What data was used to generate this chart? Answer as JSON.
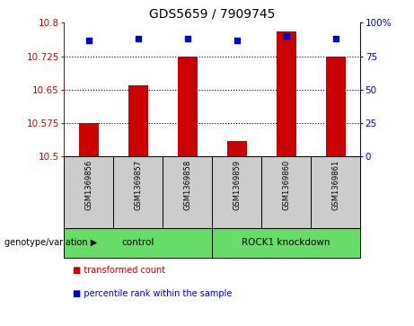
{
  "title": "GDS5659 / 7909745",
  "samples": [
    "GSM1369856",
    "GSM1369857",
    "GSM1369858",
    "GSM1369859",
    "GSM1369860",
    "GSM1369861"
  ],
  "red_values": [
    10.575,
    10.66,
    10.725,
    10.535,
    10.78,
    10.725
  ],
  "blue_values": [
    87,
    88,
    88,
    87,
    90,
    88
  ],
  "ylim_left": [
    10.5,
    10.8
  ],
  "ylim_right": [
    0,
    100
  ],
  "yticks_left": [
    10.5,
    10.575,
    10.65,
    10.725,
    10.8
  ],
  "yticks_right": [
    0,
    25,
    50,
    75,
    100
  ],
  "ytick_labels_left": [
    "10.5",
    "10.575",
    "10.65",
    "10.725",
    "10.8"
  ],
  "ytick_labels_right": [
    "0",
    "25",
    "50",
    "75",
    "100%"
  ],
  "hlines": [
    10.575,
    10.65,
    10.725
  ],
  "bar_color": "#cc0000",
  "dot_color": "#0000cc",
  "bar_bottom": 10.5,
  "legend_items": [
    {
      "color": "#cc0000",
      "label": "transformed count"
    },
    {
      "color": "#0000cc",
      "label": "percentile rank within the sample"
    }
  ],
  "title_fontsize": 10,
  "tick_fontsize": 7.5,
  "sample_area_color": "#cccccc",
  "group_area_color": "#66dd66",
  "group_ranges": [
    [
      0,
      3,
      "control"
    ],
    [
      3,
      6,
      "ROCK1 knockdown"
    ]
  ]
}
